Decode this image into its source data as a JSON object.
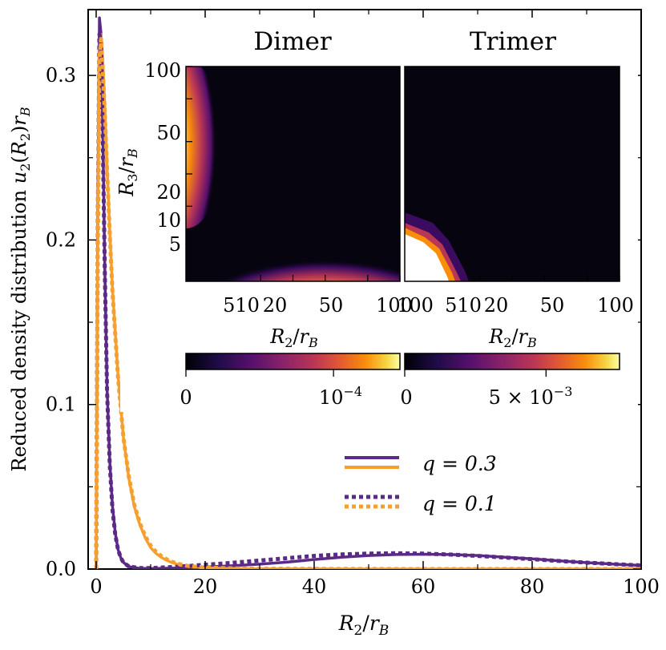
{
  "chart_data": {
    "type": "line",
    "xlabel": "R",
    "xlabel_sub": "2",
    "xlabel_den": "r",
    "xlabel_den_sub": "B",
    "ylabel_prefix": "Reduced density distribution",
    "ylabel_func": "u",
    "ylabel_func_sub": "2",
    "ylabel_arg": "R",
    "ylabel_arg_sub": "2",
    "ylabel_suffix": "r",
    "ylabel_suffix_sub": "B",
    "xlim": [
      0,
      100
    ],
    "ylim": [
      0,
      0.34
    ],
    "xticks": [
      "0",
      "20",
      "40",
      "60",
      "80",
      "100"
    ],
    "yticks": [
      "0.0",
      "0.1",
      "0.2",
      "0.3"
    ],
    "xtick_values": [
      0,
      20,
      40,
      60,
      80,
      100
    ],
    "ytick_values": [
      0.0,
      0.1,
      0.2,
      0.3
    ],
    "colors": {
      "dimer": "#5b2a86",
      "trimer": "#f5a02e"
    },
    "series": [
      {
        "name": "dimer q=0.3",
        "style": "solid",
        "x": [
          0,
          0.3,
          0.6,
          0.9,
          1.2,
          1.6,
          2.0,
          2.5,
          3.0,
          3.5,
          4.0,
          4.5,
          5.0,
          6.0,
          8.0,
          10,
          15,
          20,
          25,
          30,
          35,
          40,
          45,
          50,
          55,
          60,
          65,
          70,
          75,
          80,
          85,
          90,
          95,
          100
        ],
        "y": [
          0,
          0.22,
          0.335,
          0.325,
          0.27,
          0.18,
          0.11,
          0.065,
          0.038,
          0.022,
          0.012,
          0.007,
          0.004,
          0.0015,
          0.0004,
          0.0003,
          0.0006,
          0.0012,
          0.002,
          0.003,
          0.0042,
          0.0058,
          0.0072,
          0.0082,
          0.0088,
          0.009,
          0.0088,
          0.0082,
          0.0072,
          0.0062,
          0.005,
          0.0039,
          0.003,
          0.0022
        ]
      },
      {
        "name": "trimer q=0.3",
        "style": "solid",
        "x": [
          0,
          0.3,
          0.6,
          0.9,
          1.2,
          1.6,
          2.0,
          2.5,
          3.0,
          4.0,
          5.0,
          6.0,
          7.0,
          8.0,
          9.0,
          10,
          11,
          12,
          13,
          14,
          15,
          17,
          20,
          25,
          30,
          40,
          60,
          80,
          100
        ],
        "y": [
          0,
          0.2,
          0.315,
          0.325,
          0.31,
          0.28,
          0.245,
          0.205,
          0.17,
          0.118,
          0.08,
          0.055,
          0.038,
          0.027,
          0.019,
          0.013,
          0.0095,
          0.007,
          0.0052,
          0.0038,
          0.0028,
          0.0015,
          0.0007,
          0.0003,
          0.0001,
          5e-05,
          0.0,
          0.0,
          0.0
        ]
      },
      {
        "name": "dimer q=0.1",
        "style": "dotted",
        "x": [
          0,
          0.3,
          0.6,
          0.9,
          1.2,
          1.6,
          2.0,
          2.5,
          3.0,
          3.5,
          4.0,
          4.5,
          5.0,
          6.0,
          8.0,
          10,
          15,
          20,
          25,
          30,
          35,
          40,
          45,
          50,
          55,
          60,
          65,
          70,
          75,
          80,
          85,
          90,
          95,
          100
        ],
        "y": [
          0,
          0.21,
          0.325,
          0.32,
          0.265,
          0.178,
          0.108,
          0.063,
          0.036,
          0.021,
          0.012,
          0.007,
          0.004,
          0.0016,
          0.0006,
          0.0006,
          0.0014,
          0.0026,
          0.0038,
          0.0052,
          0.0066,
          0.008,
          0.0089,
          0.0094,
          0.0096,
          0.0094,
          0.0088,
          0.008,
          0.007,
          0.006,
          0.0049,
          0.0039,
          0.003,
          0.0022
        ]
      },
      {
        "name": "trimer q=0.1",
        "style": "dotted",
        "x": [
          0,
          0.3,
          0.6,
          0.9,
          1.2,
          1.6,
          2.0,
          2.5,
          3.0,
          4.0,
          5.0,
          6.0,
          7.0,
          8.0,
          9.0,
          10,
          11,
          12,
          13,
          14,
          15,
          17,
          20,
          25,
          30,
          40,
          60,
          80,
          100
        ],
        "y": [
          0,
          0.195,
          0.31,
          0.322,
          0.305,
          0.276,
          0.242,
          0.203,
          0.168,
          0.117,
          0.08,
          0.056,
          0.039,
          0.028,
          0.02,
          0.0142,
          0.0104,
          0.0078,
          0.0058,
          0.0043,
          0.0032,
          0.0018,
          0.0009,
          0.0004,
          0.0002,
          0.0001,
          0.0,
          0.0,
          0.0
        ]
      }
    ],
    "legend": {
      "placement": "center-right",
      "entries": [
        {
          "label": "q = 0.3",
          "style": "solid"
        },
        {
          "label": "q = 0.1",
          "style": "dotted"
        }
      ]
    },
    "insets": [
      {
        "title": "Dimer",
        "type": "heatmap",
        "xlabel": "R2/rB",
        "xticks": [
          "5",
          "10",
          "20",
          "50",
          "100"
        ],
        "xtick_values": [
          5,
          10,
          20,
          50,
          100
        ],
        "yticks": [
          "100",
          "50",
          "20",
          "10",
          "5"
        ],
        "ytick_values": [
          100,
          50,
          20,
          10,
          5
        ],
        "ylabel": "R3/rB",
        "colorbar_ticks": [
          "0",
          "10^-4"
        ],
        "colorbar_tick_values": [
          0,
          0.0001
        ],
        "colorbar_max": 0.000145
      },
      {
        "title": "Trimer",
        "type": "heatmap",
        "xlabel": "R2/rB",
        "xticks": [
          "100",
          "5",
          "10",
          "20",
          "50",
          "100"
        ],
        "xtick_values": [
          1,
          5,
          10,
          20,
          50,
          100
        ],
        "colorbar_ticks": [
          "0",
          "5 × 10^-3"
        ],
        "colorbar_tick_values": [
          0,
          0.005
        ],
        "colorbar_max": 0.0076
      }
    ],
    "inset_labels": {
      "dimer_title": "Dimer",
      "trimer_title": "Trimer",
      "y_ticks": [
        "100",
        "50",
        "20",
        "10",
        "5"
      ],
      "dimer_x_ticks": [
        "510",
        "20",
        "50",
        "100"
      ],
      "trimer_x_ticks": [
        "100",
        "510",
        "20",
        "50",
        "100"
      ],
      "cb1_left": "0",
      "cb1_right_base": "10",
      "cb1_right_exp": "−4",
      "cb2_left": "0",
      "cb2_right_base": "5 × 10",
      "cb2_right_exp": "−3"
    }
  }
}
